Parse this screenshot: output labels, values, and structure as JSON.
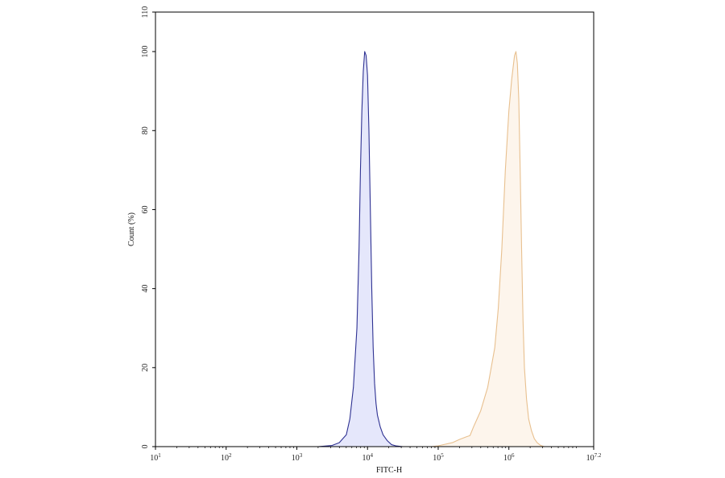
{
  "chart_data": {
    "type": "area",
    "title": "",
    "xlabel": "FITC-H",
    "ylabel": "Count (%)",
    "x_scale": "log10",
    "xlim": [
      1,
      7.2
    ],
    "ylim": [
      0,
      110
    ],
    "grid": false,
    "x_ticks": [
      {
        "base": "10",
        "exp": "1",
        "value": 1
      },
      {
        "base": "10",
        "exp": "2",
        "value": 2
      },
      {
        "base": "10",
        "exp": "3",
        "value": 3
      },
      {
        "base": "10",
        "exp": "4",
        "value": 4
      },
      {
        "base": "10",
        "exp": "5",
        "value": 5
      },
      {
        "base": "10",
        "exp": "6",
        "value": 6
      },
      {
        "base": "10",
        "exp": "7.2",
        "value": 7.2
      }
    ],
    "y_ticks": [
      "0",
      "20",
      "40",
      "60",
      "80",
      "100",
      "110"
    ],
    "series": [
      {
        "color": "#2e3192",
        "fill": "#e5e7fb",
        "x": [
          3.3,
          3.5,
          3.6,
          3.7,
          3.75,
          3.8,
          3.85,
          3.88,
          3.9,
          3.92,
          3.94,
          3.96,
          3.98,
          4.0,
          4.02,
          4.04,
          4.06,
          4.08,
          4.1,
          4.12,
          4.14,
          4.18,
          4.22,
          4.28,
          4.34,
          4.4,
          4.5,
          5.0
        ],
        "y": [
          0,
          0.3,
          1,
          3,
          7,
          15,
          30,
          50,
          70,
          85,
          95,
          100,
          99,
          94,
          80,
          60,
          40,
          25,
          16,
          11,
          8,
          5,
          3,
          1.5,
          0.5,
          0.2,
          0,
          0
        ]
      },
      {
        "color": "#e8c08f",
        "fill": "#fdf5ec",
        "x": [
          4.9,
          5.0,
          5.2,
          5.3,
          5.4,
          5.45,
          5.5,
          5.55,
          5.6,
          5.65,
          5.7,
          5.75,
          5.8,
          5.85,
          5.9,
          5.95,
          6.0,
          6.04,
          6.08,
          6.1,
          6.12,
          6.14,
          6.16,
          6.18,
          6.2,
          6.22,
          6.25,
          6.28,
          6.32,
          6.36,
          6.4,
          6.45,
          6.5,
          7.0
        ],
        "y": [
          0,
          0.2,
          1,
          1.8,
          2.5,
          2.8,
          5,
          7,
          9,
          12,
          15,
          20,
          25,
          35,
          50,
          70,
          85,
          93,
          99,
          100,
          97,
          88,
          70,
          50,
          32,
          20,
          12,
          7,
          4,
          2,
          1,
          0.3,
          0,
          0
        ]
      }
    ]
  }
}
